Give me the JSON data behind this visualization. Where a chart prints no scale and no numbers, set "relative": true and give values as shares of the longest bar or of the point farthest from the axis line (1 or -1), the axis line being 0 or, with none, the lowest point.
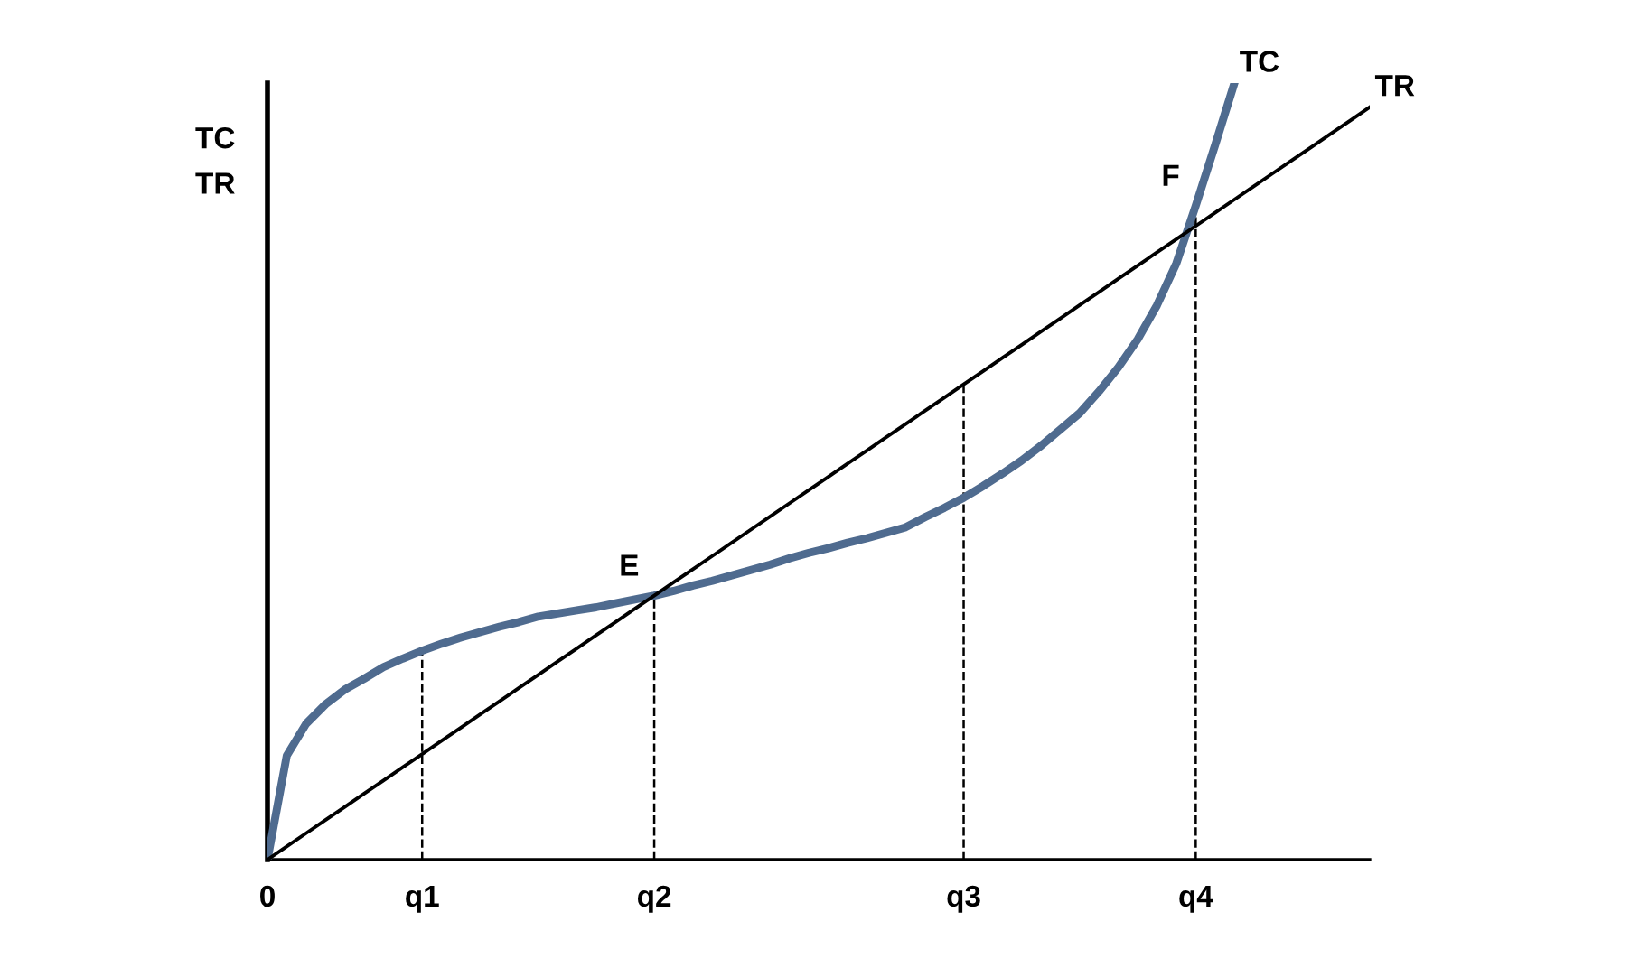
{
  "chart_data": {
    "type": "line",
    "relative": true,
    "ylabel": "TC\nTR",
    "categories": [
      "0",
      null,
      null,
      null,
      null,
      null,
      null,
      null,
      "q1",
      null,
      null,
      null,
      null,
      null,
      null,
      null,
      null,
      null,
      null,
      null,
      "q2",
      null,
      null,
      null,
      null,
      null,
      null,
      null,
      null,
      null,
      null,
      null,
      null,
      null,
      null,
      null,
      "q3",
      null,
      null,
      null,
      null,
      null,
      null,
      null,
      null,
      null,
      null,
      null,
      "q4",
      null,
      null,
      null,
      null,
      null,
      null,
      null,
      null,
      null
    ],
    "series": [
      {
        "name": "TC",
        "color": "#4f6b8f",
        "values": [
          0,
          0.134,
          0.175,
          0.2,
          0.219,
          0.233,
          0.248,
          0.259,
          0.269,
          0.278,
          0.286,
          0.293,
          0.3,
          0.306,
          0.313,
          0.317,
          0.321,
          0.325,
          0.33,
          0.335,
          0.34,
          0.346,
          0.353,
          0.359,
          0.366,
          0.373,
          0.38,
          0.388,
          0.395,
          0.401,
          0.408,
          0.414,
          0.421,
          0.428,
          0.441,
          0.453,
          0.466,
          0.481,
          0.497,
          0.514,
          0.533,
          0.554,
          0.575,
          0.603,
          0.634,
          0.67,
          0.714,
          0.768,
          0.842,
          0.92,
          1.0,
          null,
          null,
          null,
          null,
          null,
          null,
          null
        ]
      },
      {
        "name": "TR",
        "color": "#000000",
        "values": [
          0,
          0.017,
          0.034,
          0.051,
          0.068,
          0.085,
          0.102,
          0.119,
          0.136,
          0.153,
          0.17,
          0.187,
          0.204,
          0.221,
          0.238,
          0.255,
          0.272,
          0.289,
          0.306,
          0.323,
          0.34,
          0.357,
          0.374,
          0.391,
          0.408,
          0.425,
          0.442,
          0.459,
          0.476,
          0.493,
          0.51,
          0.527,
          0.544,
          0.561,
          0.578,
          0.595,
          0.612,
          0.629,
          0.646,
          0.663,
          0.68,
          0.697,
          0.714,
          0.731,
          0.748,
          0.765,
          0.782,
          0.799,
          0.816,
          0.833,
          0.85,
          0.867,
          0.884,
          0.901,
          0.918,
          0.935,
          0.952,
          0.969
        ]
      }
    ],
    "ref_lines": [
      {
        "axis": "x",
        "value": "q1",
        "line_style": "dashed",
        "color": "#000000"
      },
      {
        "axis": "x",
        "value": "q2",
        "line_style": "dashed",
        "color": "#000000"
      },
      {
        "axis": "x",
        "value": "q3",
        "line_style": "dashed",
        "color": "#000000"
      },
      {
        "axis": "x",
        "value": "q4",
        "line_style": "dashed",
        "color": "#000000"
      }
    ],
    "annotations": [
      {
        "text": "E",
        "x": "q2",
        "y": 0.34
      },
      {
        "text": "F",
        "x": "q4",
        "y": 0.842
      }
    ]
  }
}
